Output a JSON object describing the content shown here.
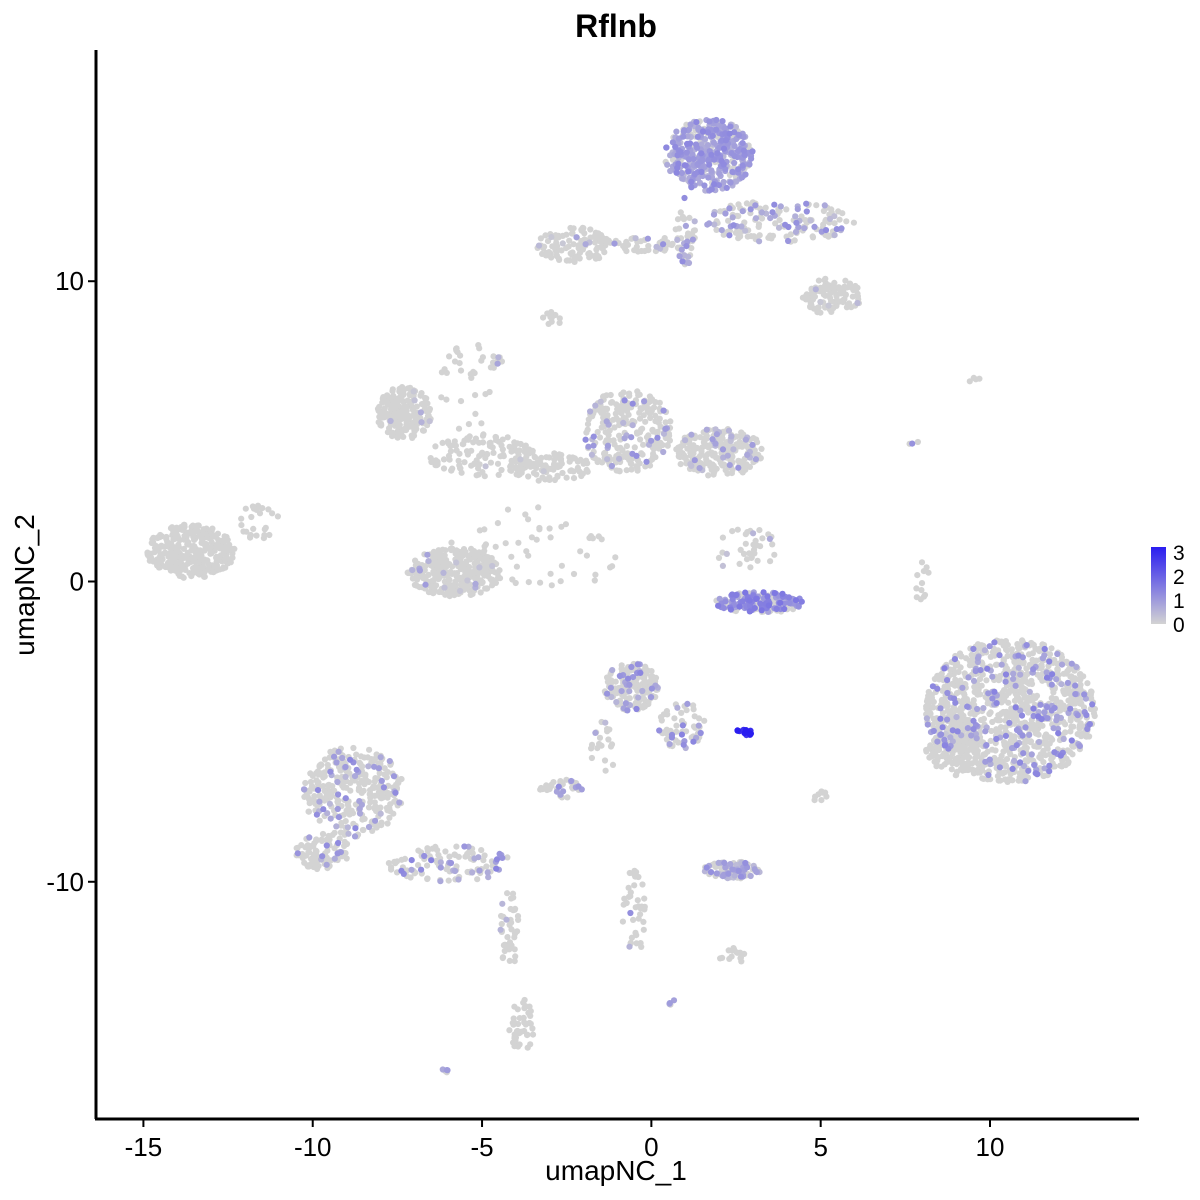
{
  "chart_data": {
    "type": "scatter",
    "title": "Rflnb",
    "xlabel": "umapNC_1",
    "ylabel": "umapNC_2",
    "xlim": [
      -16.4,
      14.4
    ],
    "ylim": [
      -17.9,
      17.7
    ],
    "x_ticks": [
      -15,
      -10,
      -5,
      0,
      5,
      10
    ],
    "x_tick_labels": [
      "-15",
      "-10",
      "-5",
      "0",
      "5",
      "10"
    ],
    "y_ticks": [
      -10,
      0,
      10
    ],
    "y_tick_labels": [
      "-10",
      "0",
      "10"
    ],
    "grid": false,
    "legend_position": "right",
    "color_scale": {
      "low_color": "#d3d3d3",
      "high_color": "#2a1df0",
      "min": 0,
      "max": 3.2,
      "breaks": [
        "3",
        "2",
        "1",
        "0"
      ]
    },
    "clusters": [
      {
        "cx": 1.7,
        "cy": 14.2,
        "rx": 1.3,
        "ry": 1.2,
        "n": 420,
        "expr_mean": 0.9,
        "expr_frac": 0.75
      },
      {
        "cx": 3.8,
        "cy": 12.0,
        "rx": 2.2,
        "ry": 0.7,
        "n": 160,
        "expr_mean": 0.8,
        "expr_frac": 0.35
      },
      {
        "cx": 5.3,
        "cy": 9.5,
        "rx": 0.9,
        "ry": 0.6,
        "n": 110,
        "expr_mean": 0.5,
        "expr_frac": 0.05
      },
      {
        "cx": -2.3,
        "cy": 11.2,
        "rx": 1.1,
        "ry": 0.6,
        "n": 110,
        "expr_mean": 0.5,
        "expr_frac": 0.05
      },
      {
        "cx": -0.1,
        "cy": 11.2,
        "rx": 1.6,
        "ry": 0.25,
        "n": 50,
        "expr_mean": 0.8,
        "expr_frac": 0.15
      },
      {
        "cx": 1.0,
        "cy": 11.7,
        "rx": 0.3,
        "ry": 1.2,
        "n": 40,
        "expr_mean": 0.8,
        "expr_frac": 0.2
      },
      {
        "cx": -7.3,
        "cy": 5.6,
        "rx": 0.8,
        "ry": 0.9,
        "n": 200,
        "expr_mean": 0.5,
        "expr_frac": 0.03
      },
      {
        "cx": -5.0,
        "cy": 4.2,
        "rx": 1.6,
        "ry": 0.7,
        "n": 120,
        "expr_mean": 0.5,
        "expr_frac": 0.02
      },
      {
        "cx": -5.5,
        "cy": 6.5,
        "rx": 0.8,
        "ry": 1.6,
        "n": 30,
        "expr_mean": 0.5,
        "expr_frac": 0.0
      },
      {
        "cx": -0.7,
        "cy": 5.0,
        "rx": 1.3,
        "ry": 1.4,
        "n": 260,
        "expr_mean": 0.8,
        "expr_frac": 0.12
      },
      {
        "cx": 2.0,
        "cy": 4.3,
        "rx": 1.3,
        "ry": 0.8,
        "n": 230,
        "expr_mean": 0.7,
        "expr_frac": 0.08
      },
      {
        "cx": -3.0,
        "cy": 3.8,
        "rx": 1.2,
        "ry": 0.5,
        "n": 90,
        "expr_mean": 0.5,
        "expr_frac": 0.02
      },
      {
        "cx": -3.5,
        "cy": 1.0,
        "rx": 2.6,
        "ry": 1.5,
        "n": 60,
        "expr_mean": 0.5,
        "expr_frac": 0.0
      },
      {
        "cx": -5.8,
        "cy": 0.3,
        "rx": 1.4,
        "ry": 0.8,
        "n": 290,
        "expr_mean": 0.6,
        "expr_frac": 0.04
      },
      {
        "cx": -13.6,
        "cy": 1.0,
        "rx": 1.3,
        "ry": 0.9,
        "n": 330,
        "expr_mean": 0.5,
        "expr_frac": 0.0
      },
      {
        "cx": -11.6,
        "cy": 2.0,
        "rx": 0.6,
        "ry": 0.6,
        "n": 25,
        "expr_mean": 0.5,
        "expr_frac": 0.0
      },
      {
        "cx": 2.8,
        "cy": 1.0,
        "rx": 0.9,
        "ry": 0.9,
        "n": 35,
        "expr_mean": 0.7,
        "expr_frac": 0.1
      },
      {
        "cx": 3.2,
        "cy": -0.7,
        "rx": 1.3,
        "ry": 0.35,
        "n": 200,
        "expr_mean": 1.2,
        "expr_frac": 0.55
      },
      {
        "cx": 10.6,
        "cy": -4.3,
        "rx": 2.5,
        "ry": 2.4,
        "n": 1100,
        "expr_mean": 1.0,
        "expr_frac": 0.18
      },
      {
        "cx": 9.0,
        "cy": -5.5,
        "rx": 0.9,
        "ry": 1.0,
        "n": 140,
        "expr_mean": 0.5,
        "expr_frac": 0.02
      },
      {
        "cx": 8.0,
        "cy": 0.0,
        "rx": 0.25,
        "ry": 0.7,
        "n": 12,
        "expr_mean": 0.5,
        "expr_frac": 0.0
      },
      {
        "cx": -0.6,
        "cy": -3.5,
        "rx": 0.8,
        "ry": 0.8,
        "n": 170,
        "expr_mean": 0.9,
        "expr_frac": 0.2
      },
      {
        "cx": 0.9,
        "cy": -4.8,
        "rx": 0.7,
        "ry": 0.8,
        "n": 60,
        "expr_mean": 1.0,
        "expr_frac": 0.3
      },
      {
        "cx": -1.4,
        "cy": -5.5,
        "rx": 0.4,
        "ry": 0.9,
        "n": 20,
        "expr_mean": 0.8,
        "expr_frac": 0.2
      },
      {
        "cx": 2.8,
        "cy": -5.0,
        "rx": 0.3,
        "ry": 0.12,
        "n": 14,
        "expr_mean": 3.0,
        "expr_frac": 1.0
      },
      {
        "cx": -2.6,
        "cy": -6.9,
        "rx": 0.7,
        "ry": 0.3,
        "n": 35,
        "expr_mean": 0.9,
        "expr_frac": 0.15
      },
      {
        "cx": -8.8,
        "cy": -7.0,
        "rx": 1.5,
        "ry": 1.5,
        "n": 320,
        "expr_mean": 0.9,
        "expr_frac": 0.15
      },
      {
        "cx": -9.7,
        "cy": -9.0,
        "rx": 0.8,
        "ry": 0.6,
        "n": 90,
        "expr_mean": 0.9,
        "expr_frac": 0.12
      },
      {
        "cx": -6.0,
        "cy": -9.4,
        "rx": 1.9,
        "ry": 0.6,
        "n": 110,
        "expr_mean": 1.0,
        "expr_frac": 0.25
      },
      {
        "cx": -4.2,
        "cy": -11.6,
        "rx": 0.3,
        "ry": 1.3,
        "n": 40,
        "expr_mean": 0.6,
        "expr_frac": 0.05
      },
      {
        "cx": -3.8,
        "cy": -14.8,
        "rx": 0.4,
        "ry": 0.9,
        "n": 45,
        "expr_mean": 0.5,
        "expr_frac": 0.0
      },
      {
        "cx": 2.4,
        "cy": -9.6,
        "rx": 0.85,
        "ry": 0.3,
        "n": 100,
        "expr_mean": 0.8,
        "expr_frac": 0.5
      },
      {
        "cx": 2.4,
        "cy": -12.5,
        "rx": 0.4,
        "ry": 0.3,
        "n": 15,
        "expr_mean": 0.5,
        "expr_frac": 0.05
      },
      {
        "cx": -0.5,
        "cy": -11.0,
        "rx": 0.35,
        "ry": 1.5,
        "n": 40,
        "expr_mean": 0.8,
        "expr_frac": 0.05
      },
      {
        "cx": 5.0,
        "cy": -7.2,
        "rx": 0.2,
        "ry": 0.3,
        "n": 8,
        "expr_mean": 0.8,
        "expr_frac": 0.2
      },
      {
        "cx": 0.6,
        "cy": -14.0,
        "rx": 0.1,
        "ry": 0.1,
        "n": 4,
        "expr_mean": 1.0,
        "expr_frac": 0.5
      },
      {
        "cx": -6.1,
        "cy": -16.3,
        "rx": 0.1,
        "ry": 0.1,
        "n": 5,
        "expr_mean": 1.0,
        "expr_frac": 0.6
      },
      {
        "cx": 9.6,
        "cy": 6.7,
        "rx": 0.25,
        "ry": 0.1,
        "n": 4,
        "expr_mean": 0.5,
        "expr_frac": 0.0
      },
      {
        "cx": -2.9,
        "cy": 8.8,
        "rx": 0.3,
        "ry": 0.3,
        "n": 10,
        "expr_mean": 0.5,
        "expr_frac": 0.0
      },
      {
        "cx": -4.6,
        "cy": 7.3,
        "rx": 0.2,
        "ry": 0.3,
        "n": 10,
        "expr_mean": 0.8,
        "expr_frac": 0.1
      },
      {
        "cx": 7.8,
        "cy": 4.6,
        "rx": 0.2,
        "ry": 0.2,
        "n": 3,
        "expr_mean": 0.8,
        "expr_frac": 0.3
      }
    ]
  }
}
